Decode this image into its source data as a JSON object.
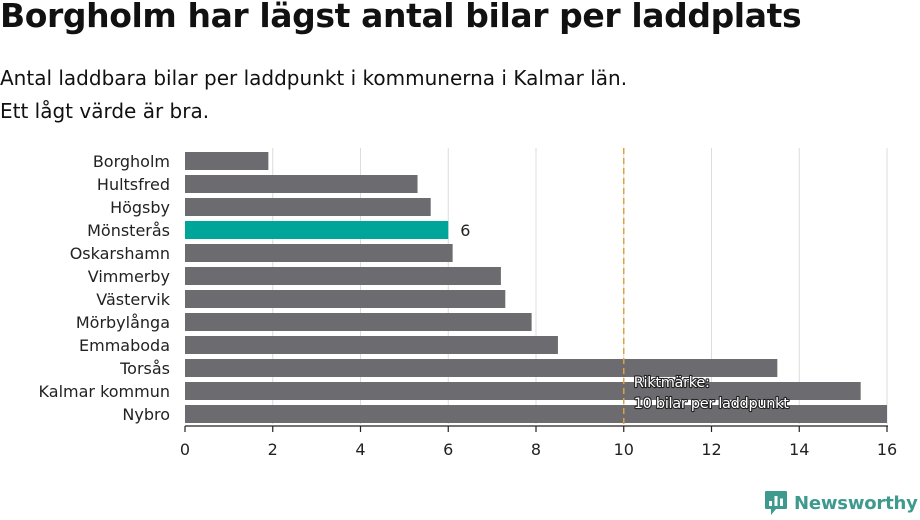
{
  "title": "Borgholm har lägst antal bilar per laddplats",
  "subtitle": {
    "line1": "Antal laddbara bilar per laddpunkt i kommunerna i Kalmar län.",
    "line2": "Ett lågt värde är bra."
  },
  "brand": {
    "name": "Newsworthy",
    "icon": "newsworthy-logo-icon"
  },
  "colors": {
    "bar": "#6c6b70",
    "highlight": "#00a59a",
    "reference_line": "#e0a040",
    "grid": "#dcdcdc",
    "brand": "#3e9a8e"
  },
  "chart_data": {
    "type": "bar",
    "orientation": "horizontal",
    "title": "Borgholm har lägst antal bilar per laddplats",
    "subtitle": "Antal laddbara bilar per laddpunkt i kommunerna i Kalmar län. Ett lågt värde är bra.",
    "categories": [
      "Borgholm",
      "Hultsfred",
      "Högsby",
      "Mönsterås",
      "Oskarshamn",
      "Vimmerby",
      "Västervik",
      "Mörbylånga",
      "Emmaboda",
      "Torsås",
      "Kalmar kommun",
      "Nybro"
    ],
    "values": [
      1.9,
      5.3,
      5.6,
      6.0,
      6.1,
      7.2,
      7.3,
      7.9,
      8.5,
      13.5,
      15.4,
      16.0
    ],
    "highlight_index": 3,
    "data_labels": [
      {
        "index": 3,
        "text": "6"
      }
    ],
    "xlim": [
      0,
      16
    ],
    "xticks": [
      0,
      2,
      4,
      6,
      8,
      10,
      12,
      14,
      16
    ],
    "grid": true,
    "reference_line": {
      "value": 10,
      "label_line1": "Riktmärke:",
      "label_line2": "10 bilar per laddpunkt"
    },
    "xlabel": "",
    "ylabel": ""
  }
}
